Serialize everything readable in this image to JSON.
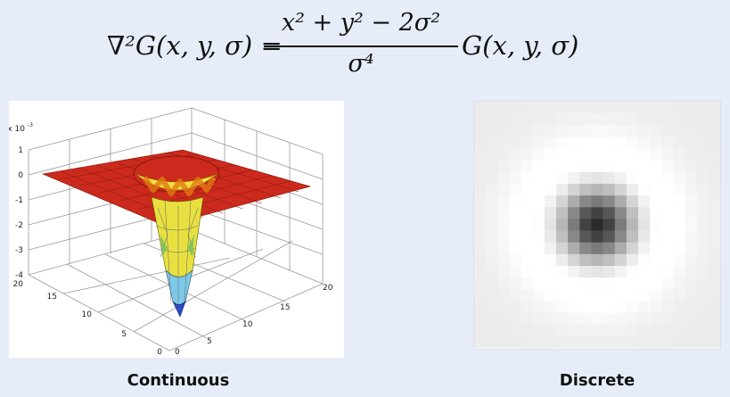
{
  "formula": {
    "lhs": "∇²G(x, y, σ) =",
    "numerator": "x² + y² − 2σ²",
    "denominator": "σ⁴",
    "rhs": "G(x, y, σ)"
  },
  "continuous_plot": {
    "exponent_label": "x 10",
    "exponent_power": "-3",
    "z_ticks": [
      "1",
      "0",
      "-1",
      "-2",
      "-3",
      "-4"
    ],
    "y_ticks": [
      "20",
      "15",
      "10",
      "5",
      "0"
    ],
    "x_ticks": [
      "0",
      "5",
      "10",
      "15",
      "20"
    ],
    "surface_color": "#cc2a1c"
  },
  "discrete_image": {
    "description_colors": [
      "#f7f7f7",
      "#000000"
    ]
  },
  "captions": {
    "continuous": "Continuous",
    "discrete": "Discrete"
  }
}
